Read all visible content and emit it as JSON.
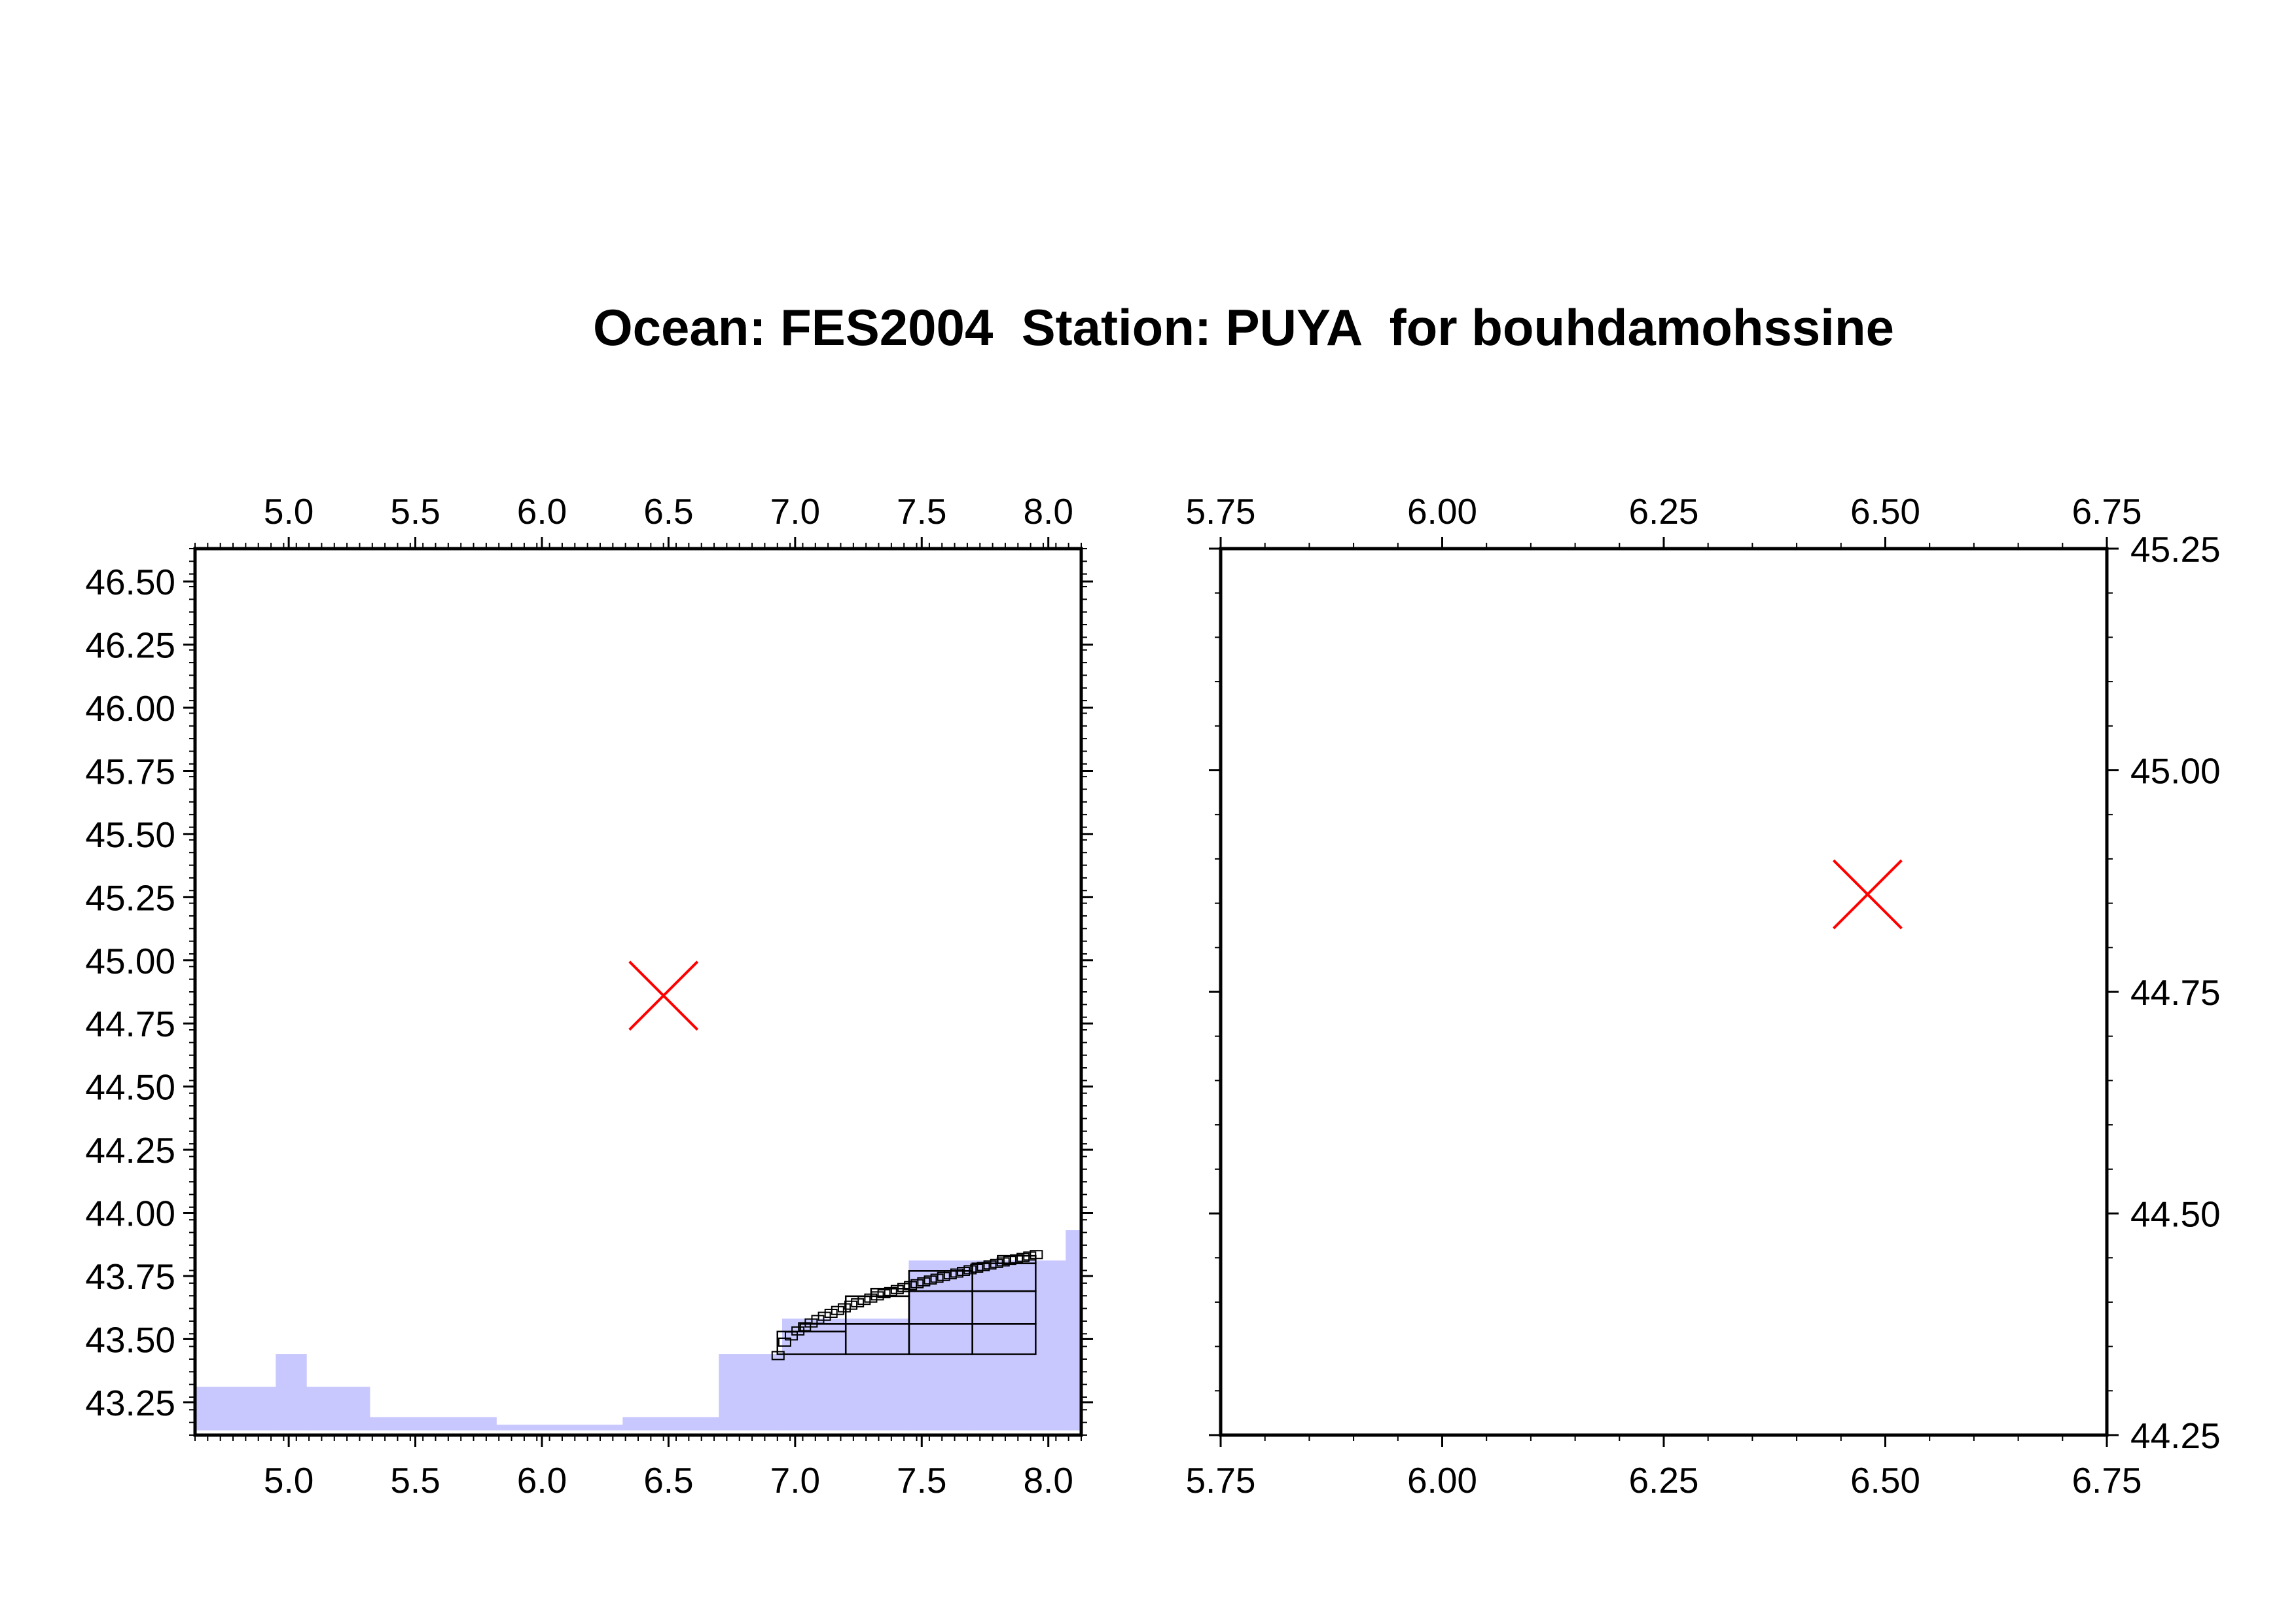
{
  "title": "Ocean: FES2004  Station: PUYA  for bouhdamohssine",
  "colors": {
    "land_fill": "#c8c8ff",
    "station_marker": "#ff0000",
    "frame": "#000000",
    "mesh": "#000000"
  },
  "marker_icon": "cross-x-marker",
  "chart_data": [
    {
      "type": "map",
      "name": "overview-map",
      "xlim": [
        4.63,
        8.13
      ],
      "ylim": [
        43.12,
        46.63
      ],
      "x_ticks": [
        "5.0",
        "5.5",
        "6.0",
        "6.5",
        "7.0",
        "7.5",
        "8.0"
      ],
      "y_ticks": [
        "43.25",
        "43.50",
        "43.75",
        "44.00",
        "44.25",
        "44.50",
        "44.75",
        "45.00",
        "45.25",
        "45.50",
        "45.75",
        "46.00",
        "46.25",
        "46.50"
      ],
      "station": {
        "lon": 6.48,
        "lat": 44.86
      },
      "land_cells": [
        [
          4.63,
          4.95,
          43.14,
          43.31
        ],
        [
          4.95,
          5.07,
          43.14,
          43.44
        ],
        [
          5.07,
          5.32,
          43.14,
          43.31
        ],
        [
          5.32,
          5.82,
          43.14,
          43.19
        ],
        [
          5.82,
          6.32,
          43.14,
          43.16
        ],
        [
          6.32,
          6.7,
          43.14,
          43.19
        ],
        [
          6.7,
          6.95,
          43.14,
          43.44
        ],
        [
          6.95,
          7.45,
          43.14,
          43.58
        ],
        [
          7.45,
          7.7,
          43.14,
          43.81
        ],
        [
          7.7,
          8.07,
          43.14,
          43.81
        ],
        [
          8.07,
          8.13,
          43.14,
          43.93
        ]
      ],
      "mesh_cells": [
        [
          6.93,
          7.2,
          43.44,
          43.53
        ],
        [
          7.02,
          7.2,
          43.53,
          43.56
        ],
        [
          7.2,
          7.45,
          43.44,
          43.56
        ],
        [
          7.2,
          7.45,
          43.56,
          43.67
        ],
        [
          7.3,
          7.45,
          43.67,
          43.7
        ],
        [
          7.45,
          7.7,
          43.44,
          43.56
        ],
        [
          7.45,
          7.7,
          43.56,
          43.69
        ],
        [
          7.45,
          7.7,
          43.69,
          43.77
        ],
        [
          7.7,
          7.95,
          43.44,
          43.56
        ],
        [
          7.7,
          7.95,
          43.56,
          43.69
        ],
        [
          7.7,
          7.95,
          43.69,
          43.8
        ],
        [
          7.8,
          7.95,
          43.8,
          43.83
        ]
      ]
    },
    {
      "type": "map",
      "name": "zoom-map",
      "xlim": [
        5.75,
        6.75
      ],
      "ylim": [
        44.25,
        45.25
      ],
      "x_ticks": [
        "5.75",
        "6.00",
        "6.25",
        "6.50",
        "6.75"
      ],
      "y_ticks": [
        "44.25",
        "44.50",
        "44.75",
        "45.00",
        "45.25"
      ],
      "station": {
        "lon": 6.48,
        "lat": 44.86
      }
    }
  ]
}
